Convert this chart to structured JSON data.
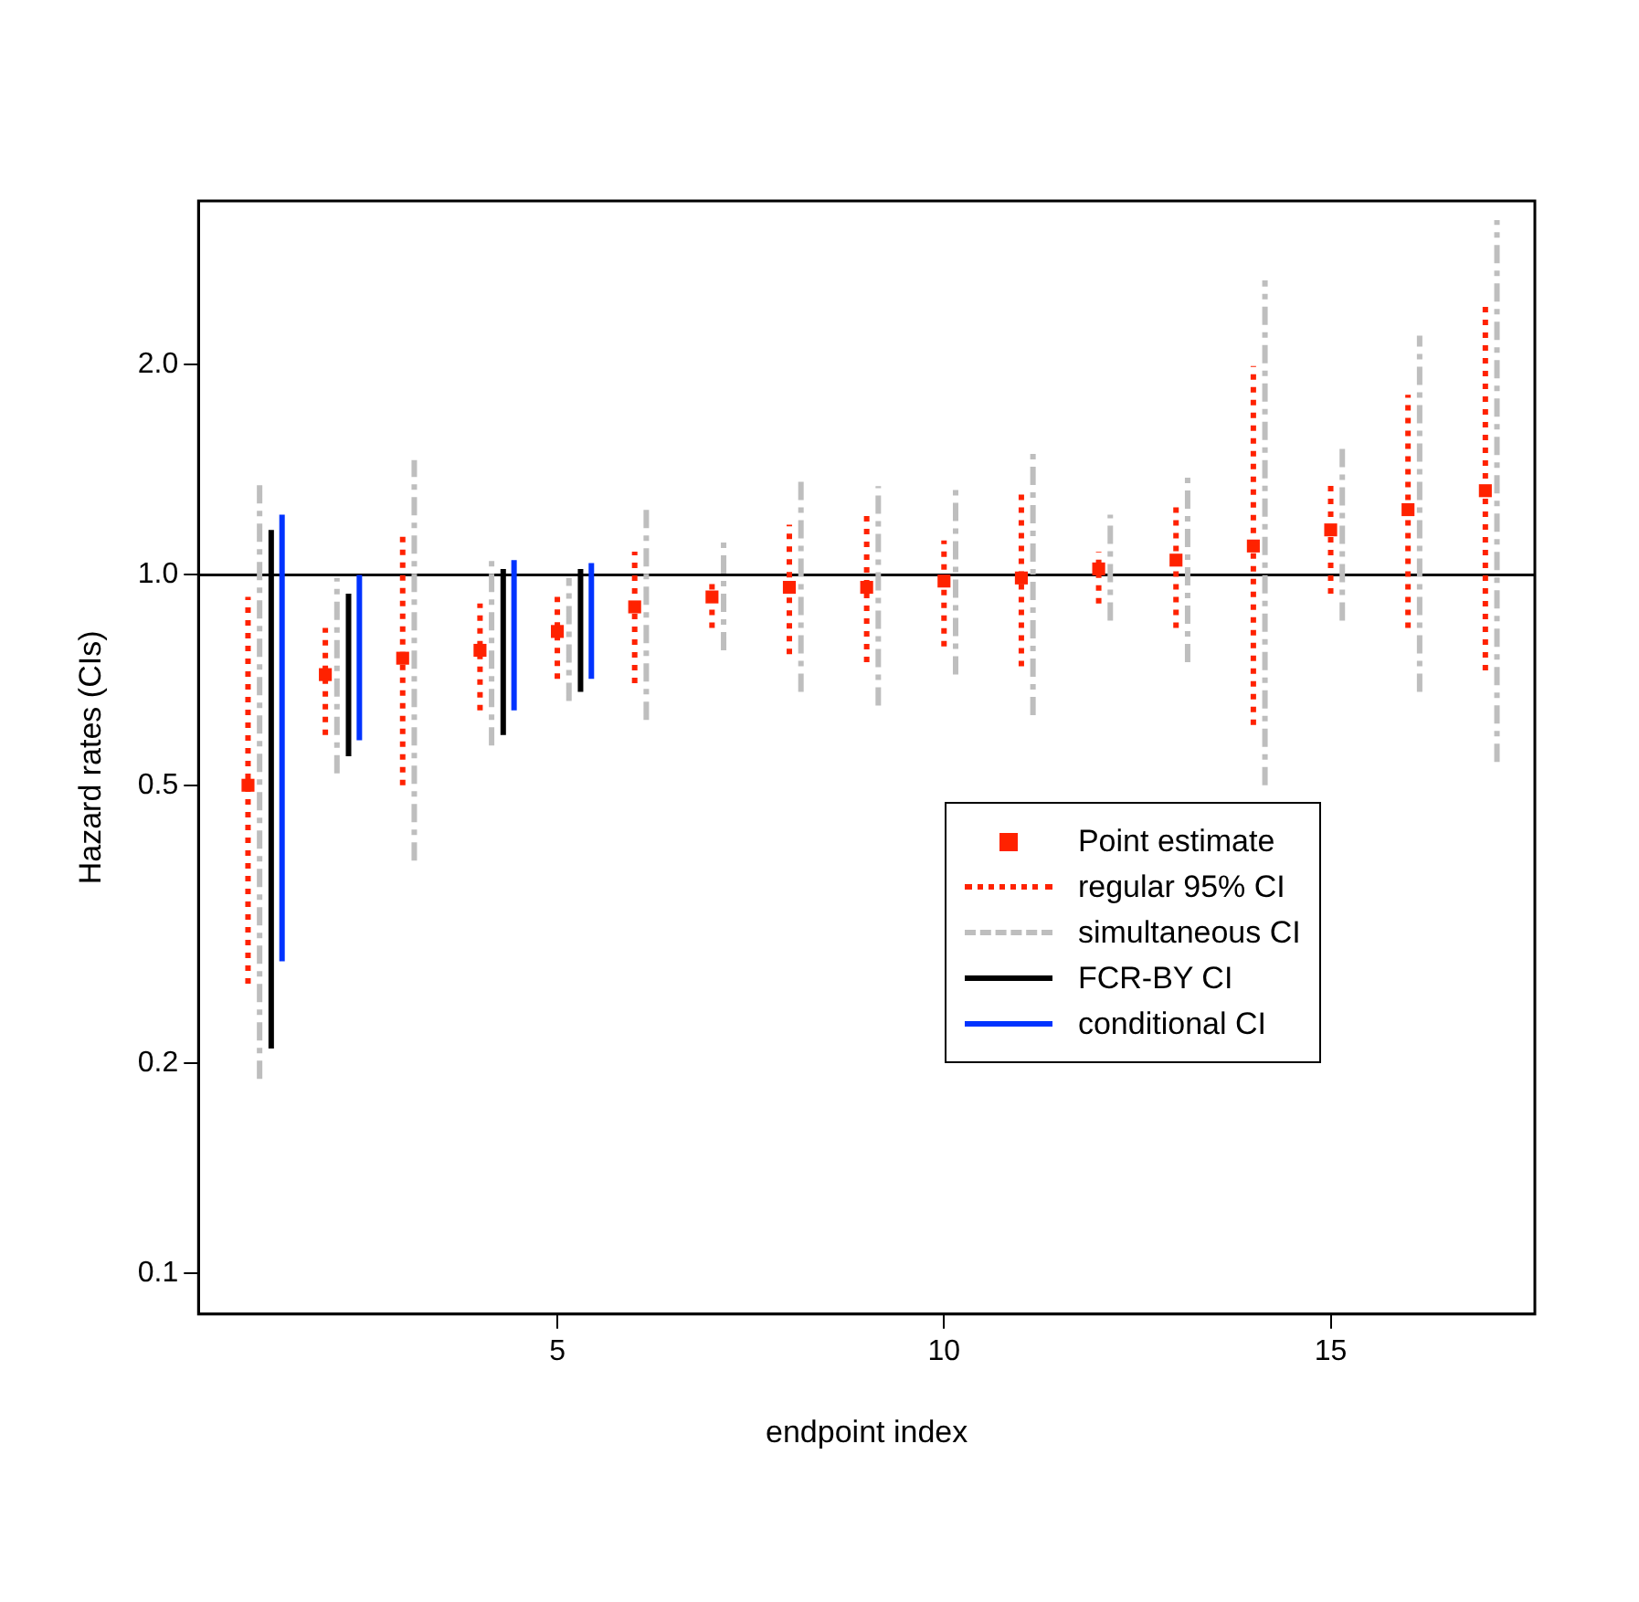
{
  "chart_data": {
    "type": "scatter",
    "xlabel": "endpoint index",
    "ylabel": "Hazard rates (CIs)",
    "log": "y",
    "xlim": [
      0.36,
      17.64
    ],
    "xticks": [
      5,
      10,
      15
    ],
    "ylim": [
      0.0875,
      3.43
    ],
    "yticks": [
      0.1,
      0.2,
      0.5,
      {
        "value": 1,
        "label": "1.0"
      },
      {
        "value": 2,
        "label": "2.0"
      }
    ],
    "grid": false,
    "legend": "bottom right",
    "ref_lines": [
      {
        "axis": "y",
        "value": 1,
        "color": "#000000"
      }
    ],
    "series": [
      {
        "name": "Point estimate",
        "type": "scatter",
        "marker": "square",
        "color": "#ff2200",
        "x": [
          1,
          2,
          3,
          4,
          5,
          6,
          7,
          8,
          9,
          10,
          11,
          12,
          13,
          14,
          15,
          16,
          17
        ],
        "values": [
          0.5,
          0.72,
          0.76,
          0.78,
          0.83,
          0.9,
          0.93,
          0.96,
          0.96,
          0.98,
          0.99,
          1.02,
          1.05,
          1.1,
          1.16,
          1.24,
          1.32
        ]
      },
      {
        "name": "regular 95% CI",
        "type": "line",
        "marker": "none",
        "line_style": "dotted",
        "color": "#ff2200",
        "x": [
          1,
          1,
          null,
          2,
          2,
          null,
          3,
          3,
          null,
          4,
          4,
          null,
          5,
          5,
          null,
          6,
          6,
          null,
          7,
          7,
          null,
          8,
          8,
          null,
          9,
          9,
          null,
          10,
          10,
          null,
          11,
          11,
          null,
          12,
          12,
          null,
          13,
          13,
          null,
          14,
          14,
          null,
          15,
          15,
          null,
          16,
          16,
          null,
          17,
          17
        ],
        "values": [
          0.26,
          0.93,
          null,
          0.59,
          0.84,
          null,
          0.5,
          1.16,
          null,
          0.64,
          0.91,
          null,
          0.71,
          0.93,
          null,
          0.7,
          1.08,
          null,
          0.84,
          0.99,
          null,
          0.77,
          1.18,
          null,
          0.75,
          1.23,
          null,
          0.79,
          1.12,
          null,
          0.74,
          1.33,
          null,
          0.91,
          1.08,
          null,
          0.84,
          1.28,
          null,
          0.61,
          1.99,
          null,
          0.94,
          1.35,
          null,
          0.84,
          1.81,
          null,
          0.73,
          2.42
        ]
      },
      {
        "name": "simultaneous CI",
        "type": "line",
        "marker": "none",
        "line_style": "dashed",
        "color": "#bebebe",
        "x": [
          1.15,
          1.15,
          null,
          2.15,
          2.15,
          null,
          3.15,
          3.15,
          null,
          4.15,
          4.15,
          null,
          5.15,
          5.15,
          null,
          6.15,
          6.15,
          null,
          7.15,
          7.15,
          null,
          8.15,
          8.15,
          null,
          9.15,
          9.15,
          null,
          10.15,
          10.15,
          null,
          11.15,
          11.15,
          null,
          12.15,
          12.15,
          null,
          13.15,
          13.15,
          null,
          14.15,
          14.15,
          null,
          15.15,
          15.15,
          null,
          16.15,
          16.15,
          null,
          17.15,
          17.15
        ],
        "values": [
          0.19,
          1.36,
          null,
          0.52,
          0.99,
          null,
          0.39,
          1.46,
          null,
          0.57,
          1.07,
          null,
          0.66,
          0.99,
          null,
          0.62,
          1.25,
          null,
          0.78,
          1.12,
          null,
          0.68,
          1.36,
          null,
          0.65,
          1.34,
          null,
          0.72,
          1.34,
          null,
          0.63,
          1.5,
          null,
          0.86,
          1.22,
          null,
          0.75,
          1.39,
          null,
          0.5,
          2.64,
          null,
          0.86,
          1.54,
          null,
          0.68,
          2.2,
          null,
          0.54,
          3.22
        ]
      },
      {
        "name": "FCR-BY CI",
        "type": "line",
        "marker": "none",
        "line_style": "solid",
        "color": "#000000",
        "x": [
          1.3,
          1.3,
          null,
          2.3,
          2.3,
          null,
          4.3,
          4.3,
          null,
          5.3,
          5.3
        ],
        "values": [
          0.21,
          1.16,
          null,
          0.55,
          0.94,
          null,
          0.59,
          1.02,
          null,
          0.68,
          1.02
        ]
      },
      {
        "name": "conditional CI",
        "type": "line",
        "marker": "none",
        "line_style": "solid",
        "color": "#0033ff",
        "x": [
          1.44,
          1.44,
          null,
          2.44,
          2.44,
          null,
          4.44,
          4.44,
          null,
          5.44,
          5.44
        ],
        "values": [
          0.28,
          1.22,
          null,
          0.58,
          1.0,
          null,
          0.64,
          1.05,
          null,
          0.71,
          1.04
        ]
      }
    ]
  }
}
